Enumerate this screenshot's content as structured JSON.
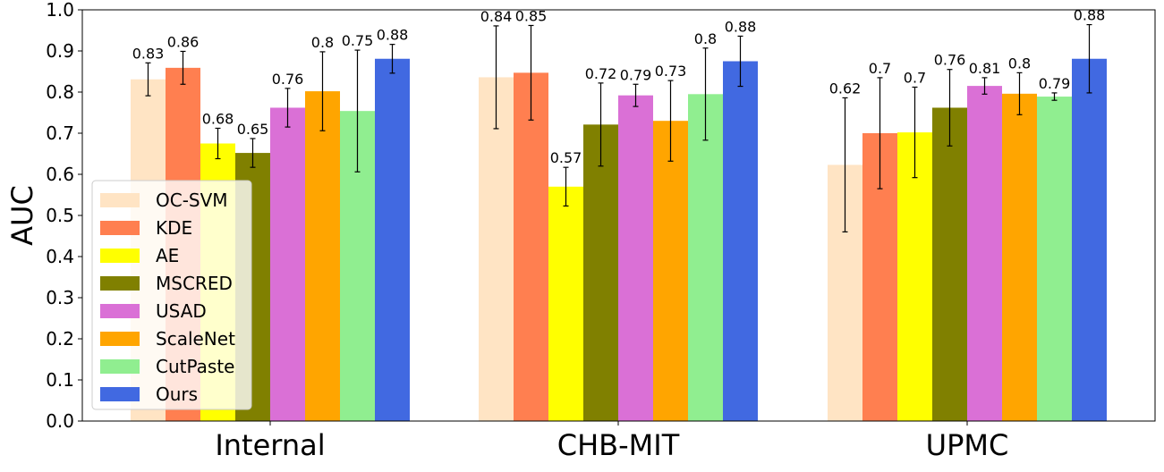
{
  "chart_data": {
    "type": "bar",
    "ylabel": "AUC",
    "ylim": [
      0,
      1.0
    ],
    "yticks": [
      "0.0",
      "0.1",
      "0.2",
      "0.3",
      "0.4",
      "0.5",
      "0.6",
      "0.7",
      "0.8",
      "0.9",
      "1.0"
    ],
    "categories": [
      "Internal",
      "CHB-MIT",
      "UPMC"
    ],
    "legend_position": "lower-left",
    "series": [
      {
        "name": "OC-SVM",
        "color": "#FFE4C4",
        "values": [
          0.831,
          0.836,
          0.623
        ],
        "errors": [
          0.04,
          0.125,
          0.163
        ],
        "labels": [
          "0.83",
          "0.84",
          "0.62"
        ]
      },
      {
        "name": "KDE",
        "color": "#FF7F50",
        "values": [
          0.859,
          0.847,
          0.7
        ],
        "errors": [
          0.04,
          0.115,
          0.135
        ],
        "labels": [
          "0.86",
          "0.85",
          "0.7"
        ]
      },
      {
        "name": "AE",
        "color": "#FFFF00",
        "values": [
          0.675,
          0.57,
          0.702
        ],
        "errors": [
          0.037,
          0.047,
          0.11
        ],
        "labels": [
          "0.68",
          "0.57",
          "0.7"
        ]
      },
      {
        "name": "MSCRED",
        "color": "#808000",
        "values": [
          0.652,
          0.721,
          0.762
        ],
        "errors": [
          0.035,
          0.101,
          0.093
        ],
        "labels": [
          "0.65",
          "0.72",
          "0.76"
        ]
      },
      {
        "name": "USAD",
        "color": "#DA70D6",
        "values": [
          0.762,
          0.792,
          0.815
        ],
        "errors": [
          0.047,
          0.027,
          0.02
        ],
        "labels": [
          "0.76",
          "0.79",
          "0.81"
        ]
      },
      {
        "name": "ScaleNet",
        "color": "#FFA500",
        "values": [
          0.802,
          0.73,
          0.796
        ],
        "errors": [
          0.096,
          0.098,
          0.051
        ],
        "labels": [
          "0.8",
          "0.73",
          "0.8"
        ]
      },
      {
        "name": "CutPaste",
        "color": "#90EE90",
        "values": [
          0.754,
          0.795,
          0.789
        ],
        "errors": [
          0.148,
          0.112,
          0.009
        ],
        "labels": [
          "0.75",
          "0.8",
          "0.79"
        ]
      },
      {
        "name": "Ours",
        "color": "#4169E1",
        "values": [
          0.881,
          0.875,
          0.881
        ],
        "errors": [
          0.035,
          0.061,
          0.083
        ],
        "labels": [
          "0.88",
          "0.88",
          "0.88"
        ]
      }
    ]
  }
}
